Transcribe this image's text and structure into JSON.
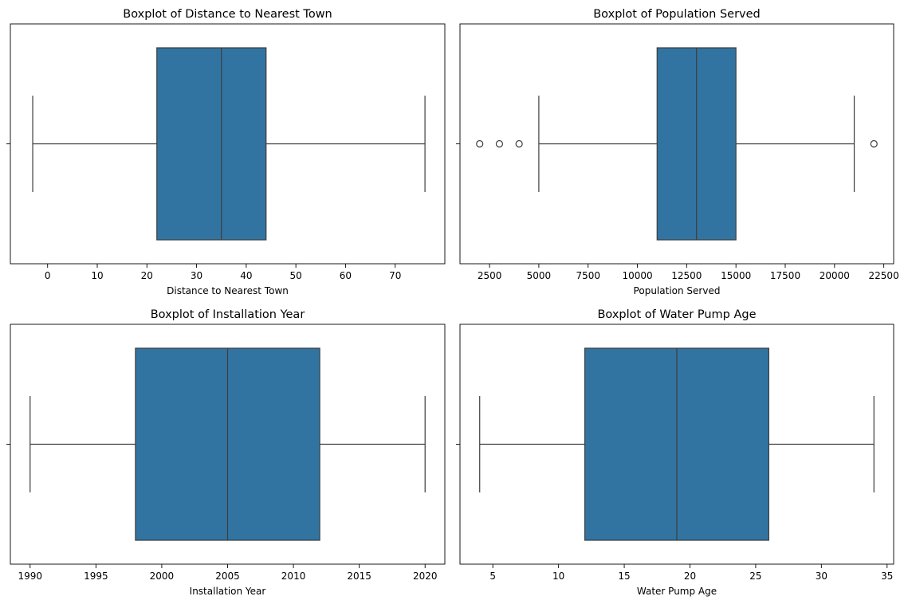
{
  "chart_data": [
    {
      "type": "box",
      "title": "Boxplot of Distance to Nearest Town",
      "xlabel": "Distance to Nearest Town",
      "xlim": [
        -7.5,
        80
      ],
      "xticks": [
        0,
        10,
        20,
        30,
        40,
        50,
        60,
        70
      ],
      "box": {
        "whisker_low": -3,
        "q1": 22,
        "median": 35,
        "q3": 44,
        "whisker_high": 76
      },
      "outliers": [],
      "color": "#3274a1"
    },
    {
      "type": "box",
      "title": "Boxplot of Population Served",
      "xlabel": "Population Served",
      "xlim": [
        1000,
        23000
      ],
      "xticks": [
        2500,
        5000,
        7500,
        10000,
        12500,
        15000,
        17500,
        20000,
        22500
      ],
      "box": {
        "whisker_low": 5000,
        "q1": 11000,
        "median": 13000,
        "q3": 15000,
        "whisker_high": 21000
      },
      "outliers": [
        2000,
        3000,
        4000,
        22000
      ],
      "color": "#3274a1"
    },
    {
      "type": "box",
      "title": "Boxplot of Installation Year",
      "xlabel": "Installation Year",
      "xlim": [
        1988.5,
        2021.5
      ],
      "xticks": [
        1990,
        1995,
        2000,
        2005,
        2010,
        2015,
        2020
      ],
      "box": {
        "whisker_low": 1990,
        "q1": 1998,
        "median": 2005,
        "q3": 2012,
        "whisker_high": 2020
      },
      "outliers": [],
      "color": "#3274a1"
    },
    {
      "type": "box",
      "title": "Boxplot of Water Pump Age",
      "xlabel": "Water Pump Age",
      "xlim": [
        2.5,
        35.5
      ],
      "xticks": [
        5,
        10,
        15,
        20,
        25,
        30,
        35
      ],
      "box": {
        "whisker_low": 4,
        "q1": 12,
        "median": 19,
        "q3": 26,
        "whisker_high": 34
      },
      "outliers": [],
      "color": "#3274a1"
    }
  ]
}
